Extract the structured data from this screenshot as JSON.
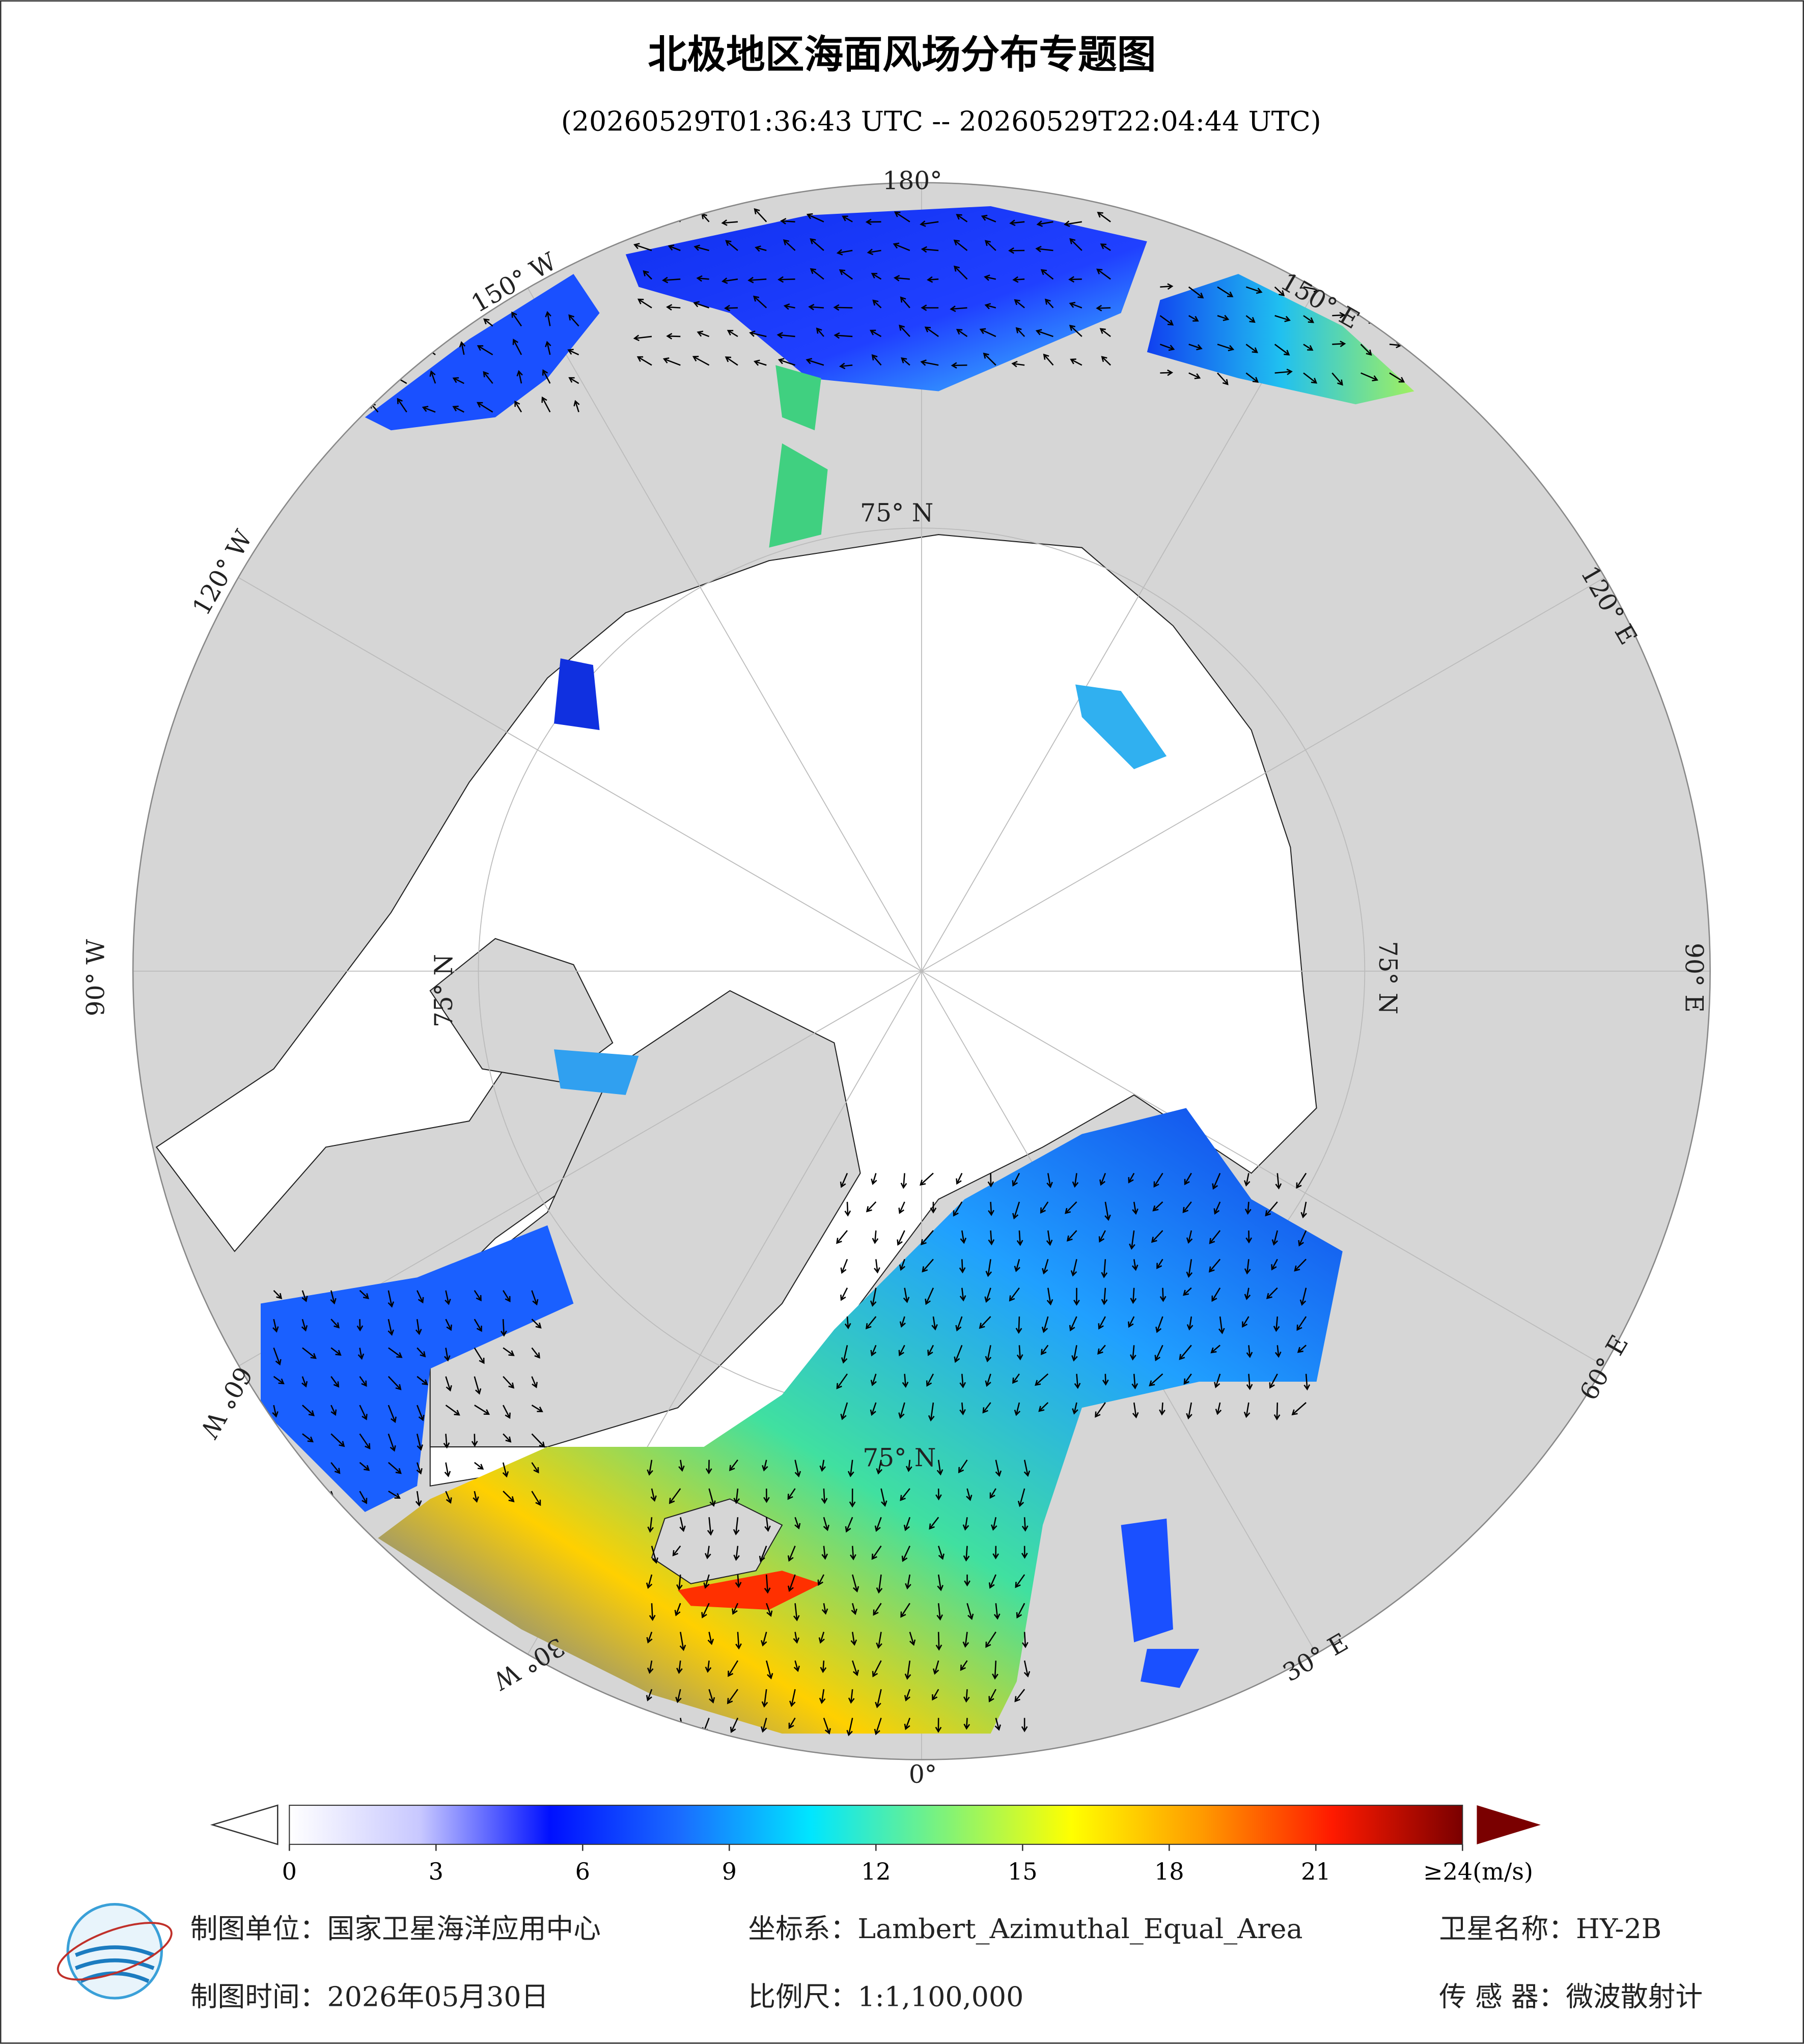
{
  "header": {
    "title": "北极地区海面风场分布专题图",
    "subtitle": "(20260529T01:36:43 UTC -- 20260529T22:04:44 UTC)"
  },
  "map": {
    "graticule_labels": [
      "180°",
      "150° W",
      "120° W",
      "90° W",
      "60° W",
      "30° W",
      "0°",
      "30° E",
      "60° E",
      "90° E",
      "120° E",
      "150° E",
      "75° N",
      "75° N",
      "75° N",
      "75° N"
    ]
  },
  "colorbar": {
    "ticks": [
      0,
      3,
      6,
      9,
      12,
      15,
      18,
      21,
      {
        "value": 24,
        "label": "≥24(m/s)"
      }
    ],
    "colors": [
      "#ffffff",
      "#c8c8ff",
      "#0010ff",
      "#1a6cff",
      "#00e6ff",
      "#7cf27c",
      "#ffff00",
      "#ff9a00",
      "#ff1a00",
      "#7a0000"
    ]
  },
  "footer": {
    "unit": "制图单位：国家卫星海洋应用中心",
    "crs": "坐标系：Lambert_Azimuthal_Equal_Area",
    "satellite": "卫星名称：HY-2B",
    "date": "制图时间：2026年05月30日",
    "scale": "比例尺：1:1,100,000",
    "sensor": "传 感 器：微波散射计"
  }
}
